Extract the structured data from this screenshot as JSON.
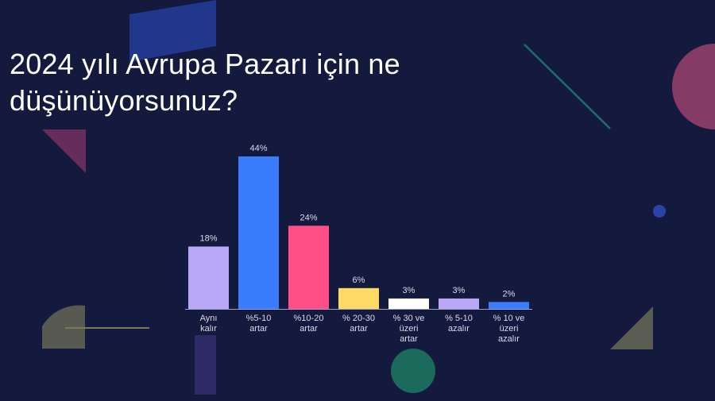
{
  "title_lines": [
    "2024 yılı Avrupa Pazarı için ne",
    "düşünüyorsunuz?"
  ],
  "colors": {
    "background": "#141a3d",
    "baseline": "#9aa0c0",
    "label": "#d8dbea"
  },
  "chart_data": {
    "type": "bar",
    "categories": [
      [
        "Aynı",
        "kalır"
      ],
      [
        "%5-10",
        "artar"
      ],
      [
        "%10-20",
        "artar"
      ],
      [
        "% 20-30",
        "artar"
      ],
      [
        "% 30 ve",
        "üzeri",
        "artar"
      ],
      [
        "% 5-10",
        "azalır"
      ],
      [
        "% 10 ve",
        "üzeri",
        "azalır"
      ]
    ],
    "values": [
      18,
      44,
      24,
      6,
      3,
      3,
      2
    ],
    "value_labels": [
      "18%",
      "44%",
      "24%",
      "6%",
      "3%",
      "3%",
      "2%"
    ],
    "bar_colors": [
      "#b8a8f6",
      "#3b7cff",
      "#ff4f86",
      "#ffd966",
      "#ffffff",
      "#b8a8f6",
      "#3b7cff"
    ],
    "ylim": [
      0,
      44
    ]
  }
}
